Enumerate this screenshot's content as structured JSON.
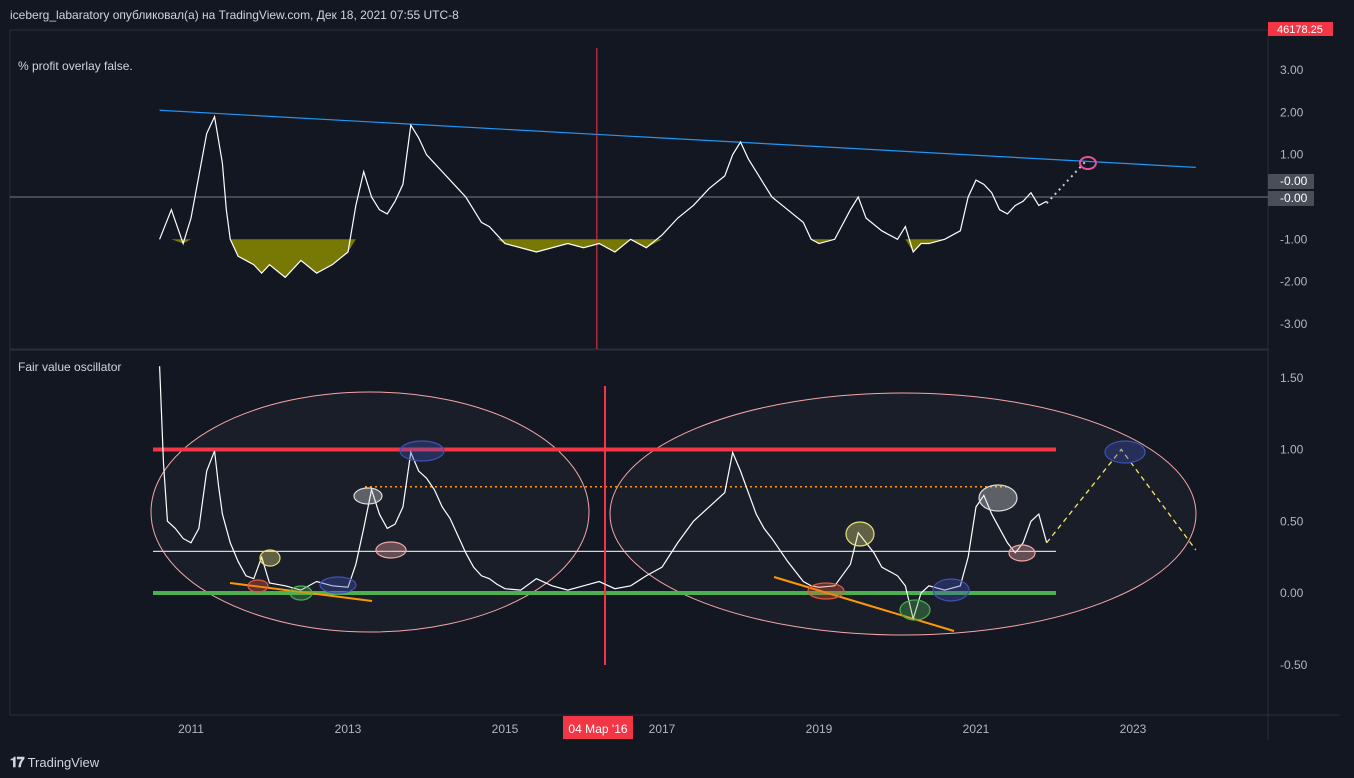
{
  "header": {
    "attribution": "iceberg_labaratory опубликовал(а) на TradingView.com, Дек 18, 2021 07:55 UTC-8"
  },
  "top_price_badge": "46178.25",
  "footer": {
    "brand": "TradingView"
  },
  "colors": {
    "background": "#131722",
    "grid": "#2a2e39",
    "trend_line": "#2196f3",
    "fill_olive": "#8b8b00",
    "upper_band": "#f23645",
    "lower_band": "#4caf50",
    "crosshair": "#f23645",
    "price_line": "#ffffff",
    "badge_red": "#f23645",
    "badge_gray": "#4a4e59",
    "ellipse": "#f4a6a6",
    "orange": "#ff9800",
    "yellow_dash": "#f5e663"
  },
  "chart_data": [
    {
      "type": "line",
      "title": "% profit overlay false.",
      "ylim": [
        -3.3,
        3.3
      ],
      "yticks": [
        "3.00",
        "2.00",
        "1.00",
        "-1.00",
        "-2.00",
        "-3.00"
      ],
      "ytick_values": [
        3,
        2,
        1,
        -1,
        -2,
        -3
      ],
      "badges": [
        "-0.00",
        "-0.00"
      ],
      "zero_line": 0,
      "series": [
        {
          "x": [
            2010.6,
            2010.75,
            2010.9,
            2011.0,
            2011.1,
            2011.2,
            2011.3,
            2011.4,
            2011.45,
            2011.5,
            2011.6,
            2011.7,
            2011.8,
            2011.9,
            2012.0,
            2012.2,
            2012.4,
            2012.6,
            2012.8,
            2013.0,
            2013.1,
            2013.2,
            2013.25,
            2013.3,
            2013.4,
            2013.5,
            2013.6,
            2013.7,
            2013.8,
            2013.9,
            2014.0,
            2014.1,
            2014.2,
            2014.3,
            2014.4,
            2014.5,
            2014.6,
            2014.7,
            2014.8,
            2014.9,
            2015.0,
            2015.2,
            2015.4,
            2015.6,
            2015.8,
            2016.0,
            2016.2,
            2016.4,
            2016.6,
            2016.8,
            2017.0,
            2017.2,
            2017.4,
            2017.6,
            2017.8,
            2017.9,
            2018.0,
            2018.1,
            2018.2,
            2018.3,
            2018.4,
            2018.6,
            2018.8,
            2018.9,
            2019.0,
            2019.2,
            2019.4,
            2019.5,
            2019.6,
            2019.8,
            2020.0,
            2020.1,
            2020.2,
            2020.3,
            2020.4,
            2020.6,
            2020.8,
            2020.9,
            2021.0,
            2021.1,
            2021.2,
            2021.3,
            2021.4,
            2021.5,
            2021.6,
            2021.7,
            2021.8,
            2021.9
          ],
          "y": [
            -1.0,
            -0.3,
            -1.1,
            -0.5,
            0.5,
            1.5,
            1.9,
            0.8,
            -0.3,
            -1.0,
            -1.4,
            -1.5,
            -1.6,
            -1.8,
            -1.6,
            -1.9,
            -1.5,
            -1.8,
            -1.6,
            -1.3,
            -0.2,
            0.6,
            0.3,
            0.0,
            -0.3,
            -0.4,
            -0.1,
            0.3,
            1.7,
            1.4,
            1.0,
            0.8,
            0.6,
            0.4,
            0.2,
            0.0,
            -0.3,
            -0.6,
            -0.7,
            -0.9,
            -1.1,
            -1.2,
            -1.3,
            -1.2,
            -1.1,
            -1.2,
            -1.1,
            -1.3,
            -1.0,
            -1.2,
            -0.9,
            -0.5,
            -0.2,
            0.2,
            0.5,
            1.0,
            1.3,
            0.9,
            0.6,
            0.3,
            0.0,
            -0.3,
            -0.6,
            -1.0,
            -1.1,
            -1.0,
            -0.3,
            0.0,
            -0.5,
            -0.8,
            -1.0,
            -0.7,
            -1.3,
            -1.1,
            -1.1,
            -1.0,
            -0.8,
            0.0,
            0.4,
            0.3,
            0.1,
            -0.3,
            -0.4,
            -0.2,
            -0.1,
            0.1,
            -0.2,
            -0.1
          ]
        }
      ],
      "trend_line": {
        "x": [
          2010.6,
          2023.8
        ],
        "y": [
          2.05,
          0.7
        ]
      },
      "projection": {
        "x": [
          2021.9,
          2022.4
        ],
        "y": [
          -0.15,
          0.85
        ]
      },
      "crosshair_x": 2016.17
    },
    {
      "type": "line",
      "title": "Fair value oscillator",
      "ylim": [
        -0.8,
        1.7
      ],
      "yticks": [
        "1.50",
        "1.00",
        "0.50",
        "0.00",
        "-0.50"
      ],
      "ytick_values": [
        1.5,
        1.0,
        0.5,
        0.0,
        -0.5
      ],
      "bands": {
        "upper": 1.0,
        "lower": 0.0,
        "mid": 0.29,
        "dotted": 0.74
      },
      "series": [
        {
          "x": [
            2010.6,
            2010.65,
            2010.7,
            2010.8,
            2010.9,
            2011.0,
            2011.1,
            2011.2,
            2011.3,
            2011.35,
            2011.4,
            2011.5,
            2011.6,
            2011.7,
            2011.8,
            2011.9,
            2012.0,
            2012.2,
            2012.4,
            2012.6,
            2012.8,
            2013.0,
            2013.1,
            2013.2,
            2013.3,
            2013.4,
            2013.5,
            2013.6,
            2013.7,
            2013.8,
            2013.9,
            2014.0,
            2014.1,
            2014.2,
            2014.3,
            2014.4,
            2014.5,
            2014.6,
            2014.7,
            2014.8,
            2014.9,
            2015.0,
            2015.2,
            2015.4,
            2015.6,
            2015.8,
            2016.0,
            2016.2,
            2016.4,
            2016.6,
            2016.8,
            2017.0,
            2017.2,
            2017.4,
            2017.6,
            2017.8,
            2017.9,
            2018.0,
            2018.1,
            2018.2,
            2018.3,
            2018.4,
            2018.6,
            2018.8,
            2018.9,
            2019.0,
            2019.2,
            2019.4,
            2019.5,
            2019.6,
            2019.7,
            2019.8,
            2020.0,
            2020.1,
            2020.2,
            2020.3,
            2020.4,
            2020.6,
            2020.8,
            2020.9,
            2021.0,
            2021.1,
            2021.2,
            2021.3,
            2021.4,
            2021.5,
            2021.6,
            2021.7,
            2021.8,
            2021.9
          ],
          "y": [
            1.58,
            0.9,
            0.5,
            0.45,
            0.38,
            0.35,
            0.45,
            0.85,
            0.99,
            0.75,
            0.55,
            0.35,
            0.22,
            0.12,
            0.1,
            0.25,
            0.07,
            0.05,
            0.02,
            0.08,
            0.05,
            0.04,
            0.2,
            0.45,
            0.72,
            0.55,
            0.45,
            0.48,
            0.6,
            0.98,
            0.85,
            0.8,
            0.72,
            0.6,
            0.52,
            0.4,
            0.28,
            0.18,
            0.12,
            0.1,
            0.06,
            0.03,
            0.02,
            0.1,
            0.05,
            0.02,
            0.05,
            0.08,
            0.03,
            0.05,
            0.12,
            0.18,
            0.35,
            0.5,
            0.6,
            0.7,
            0.98,
            0.85,
            0.7,
            0.55,
            0.45,
            0.38,
            0.22,
            0.08,
            0.05,
            0.04,
            0.05,
            0.2,
            0.42,
            0.35,
            0.28,
            0.18,
            0.12,
            0.05,
            -0.18,
            0.0,
            0.05,
            0.02,
            0.05,
            0.25,
            0.6,
            0.68,
            0.55,
            0.45,
            0.35,
            0.28,
            0.35,
            0.5,
            0.55,
            0.35
          ]
        }
      ],
      "projection": {
        "x": [
          2021.9,
          2022.85,
          2023.8
        ],
        "y": [
          0.35,
          1.0,
          0.3
        ]
      },
      "crosshair_x": 2016.17,
      "x_ticks": [
        "2011",
        "2013",
        "2015",
        "2017",
        "2019",
        "2021",
        "2023"
      ],
      "x_tick_values": [
        2011,
        2013,
        2015,
        2017,
        2019,
        2021,
        2023
      ],
      "crosshair_label": "04 Мар '16"
    }
  ]
}
